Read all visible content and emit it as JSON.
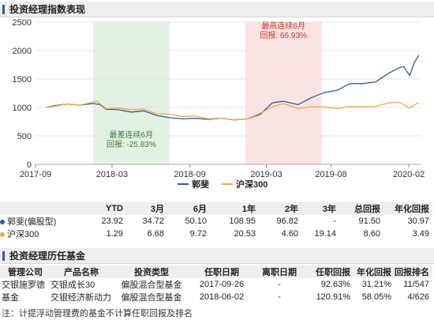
{
  "section1_title": "投资经理指数表现",
  "section2_title": "投资经理历任基金",
  "chart_data": {
    "type": "line",
    "title": "",
    "ylim": [
      0,
      2500
    ],
    "y_ticks": [
      0,
      500,
      1000,
      1500,
      2000,
      2500
    ],
    "x_tick_labels": [
      "2017-09",
      "2018-03",
      "2018-09",
      "2019-03",
      "2019-08",
      "2020-02"
    ],
    "x_tick_dates": [
      "2017-09-01",
      "2018-03-01",
      "2018-09-01",
      "2019-03-01",
      "2019-08-01",
      "2020-02-01"
    ],
    "x_range": [
      "2017-09-01",
      "2020-02-29"
    ],
    "grid": true,
    "legend_position": "bottom",
    "shaded_regions": [
      {
        "start": "2018-01-15",
        "end": "2018-07-15",
        "color": "#e3f1e3",
        "label_line1": "最差连续6月",
        "label_line2": "回报: -25.83%",
        "text_color": "#3f7a3f"
      },
      {
        "start": "2019-01-10",
        "end": "2019-07-10",
        "color": "#fbe3e3",
        "label_line1": "最高连续6月",
        "label_line2": "回报: 66.93%",
        "text_color": "#c0392b"
      }
    ],
    "series": [
      {
        "name": "郭斐",
        "color": "#2f5e94",
        "points": [
          [
            "2017-09-26",
            1000
          ],
          [
            "2017-10-15",
            1030
          ],
          [
            "2017-11-15",
            1060
          ],
          [
            "2017-12-15",
            1040
          ],
          [
            "2018-01-15",
            1070
          ],
          [
            "2018-02-01",
            1050
          ],
          [
            "2018-02-15",
            970
          ],
          [
            "2018-03-15",
            960
          ],
          [
            "2018-04-15",
            920
          ],
          [
            "2018-05-15",
            940
          ],
          [
            "2018-06-15",
            860
          ],
          [
            "2018-07-15",
            820
          ],
          [
            "2018-08-15",
            800
          ],
          [
            "2018-09-15",
            810
          ],
          [
            "2018-10-15",
            790
          ],
          [
            "2018-11-15",
            810
          ],
          [
            "2018-12-15",
            780
          ],
          [
            "2019-01-15",
            800
          ],
          [
            "2019-02-15",
            880
          ],
          [
            "2019-03-15",
            1080
          ],
          [
            "2019-04-10",
            1110
          ],
          [
            "2019-05-15",
            1050
          ],
          [
            "2019-06-15",
            1170
          ],
          [
            "2019-07-15",
            1260
          ],
          [
            "2019-08-15",
            1300
          ],
          [
            "2019-09-15",
            1420
          ],
          [
            "2019-10-15",
            1420
          ],
          [
            "2019-11-15",
            1450
          ],
          [
            "2019-12-15",
            1600
          ],
          [
            "2020-01-10",
            1700
          ],
          [
            "2020-01-20",
            1720
          ],
          [
            "2020-02-03",
            1560
          ],
          [
            "2020-02-15",
            1800
          ],
          [
            "2020-02-25",
            1920
          ]
        ]
      },
      {
        "name": "沪深300",
        "color": "#f0a848",
        "points": [
          [
            "2017-09-26",
            1000
          ],
          [
            "2017-10-15",
            1020
          ],
          [
            "2017-11-15",
            1060
          ],
          [
            "2017-12-15",
            1040
          ],
          [
            "2018-01-24",
            1110
          ],
          [
            "2018-02-15",
            980
          ],
          [
            "2018-03-15",
            990
          ],
          [
            "2018-04-15",
            960
          ],
          [
            "2018-05-15",
            970
          ],
          [
            "2018-06-15",
            890
          ],
          [
            "2018-07-15",
            880
          ],
          [
            "2018-08-15",
            840
          ],
          [
            "2018-09-15",
            850
          ],
          [
            "2018-10-15",
            800
          ],
          [
            "2018-11-15",
            810
          ],
          [
            "2018-12-15",
            780
          ],
          [
            "2019-01-15",
            800
          ],
          [
            "2019-02-15",
            900
          ],
          [
            "2019-03-15",
            1010
          ],
          [
            "2019-04-10",
            1070
          ],
          [
            "2019-05-15",
            980
          ],
          [
            "2019-06-15",
            1010
          ],
          [
            "2019-07-15",
            1010
          ],
          [
            "2019-08-15",
            980
          ],
          [
            "2019-09-15",
            1020
          ],
          [
            "2019-10-15",
            1010
          ],
          [
            "2019-11-15",
            1020
          ],
          [
            "2019-12-15",
            1080
          ],
          [
            "2020-01-10",
            1090
          ],
          [
            "2020-02-03",
            990
          ],
          [
            "2020-02-15",
            1050
          ],
          [
            "2020-02-25",
            1080
          ]
        ]
      }
    ]
  },
  "legend": [
    {
      "name": "郭斐",
      "color": "#2f5e94"
    },
    {
      "name": "沪深300",
      "color": "#f0a848"
    }
  ],
  "perf_table": {
    "headers": [
      "",
      "YTD",
      "3月",
      "6月",
      "1年",
      "2年",
      "3年",
      "总回报",
      "年化回报"
    ],
    "rows": [
      {
        "name": "郭斐(偏股型)",
        "color": "#2f5e94",
        "values": [
          "23.92",
          "34.72",
          "50.10",
          "108.95",
          "96.82",
          "-",
          "91.50",
          "30.97"
        ]
      },
      {
        "name": "沪深300",
        "color": "#f0a848",
        "values": [
          "1.29",
          "6.68",
          "9.72",
          "20.53",
          "4.60",
          "19.14",
          "8.60",
          "3.49"
        ]
      }
    ]
  },
  "fund_table": {
    "headers": [
      "管理公司",
      "产品名称",
      "投资类型",
      "任职日期",
      "离职日期",
      "任职回报",
      "年化回报",
      "回报排名"
    ],
    "company_line1": "交银施罗德",
    "company_line2": "基金",
    "rows": [
      {
        "name": "交银成长30",
        "type": "偏股混合型基金",
        "start": "2017-09-26",
        "end": "-",
        "ret": "92.63%",
        "ann": "31.21%",
        "rank": "11/547"
      },
      {
        "name": "交银经济新动力",
        "type": "偏股混合型基金",
        "start": "2018-06-02",
        "end": "-",
        "ret": "120.91%",
        "ann": "58.05%",
        "rank": "4/626"
      }
    ]
  },
  "note": "注：计提浮动管理费的基金不计算任职回报及排名"
}
